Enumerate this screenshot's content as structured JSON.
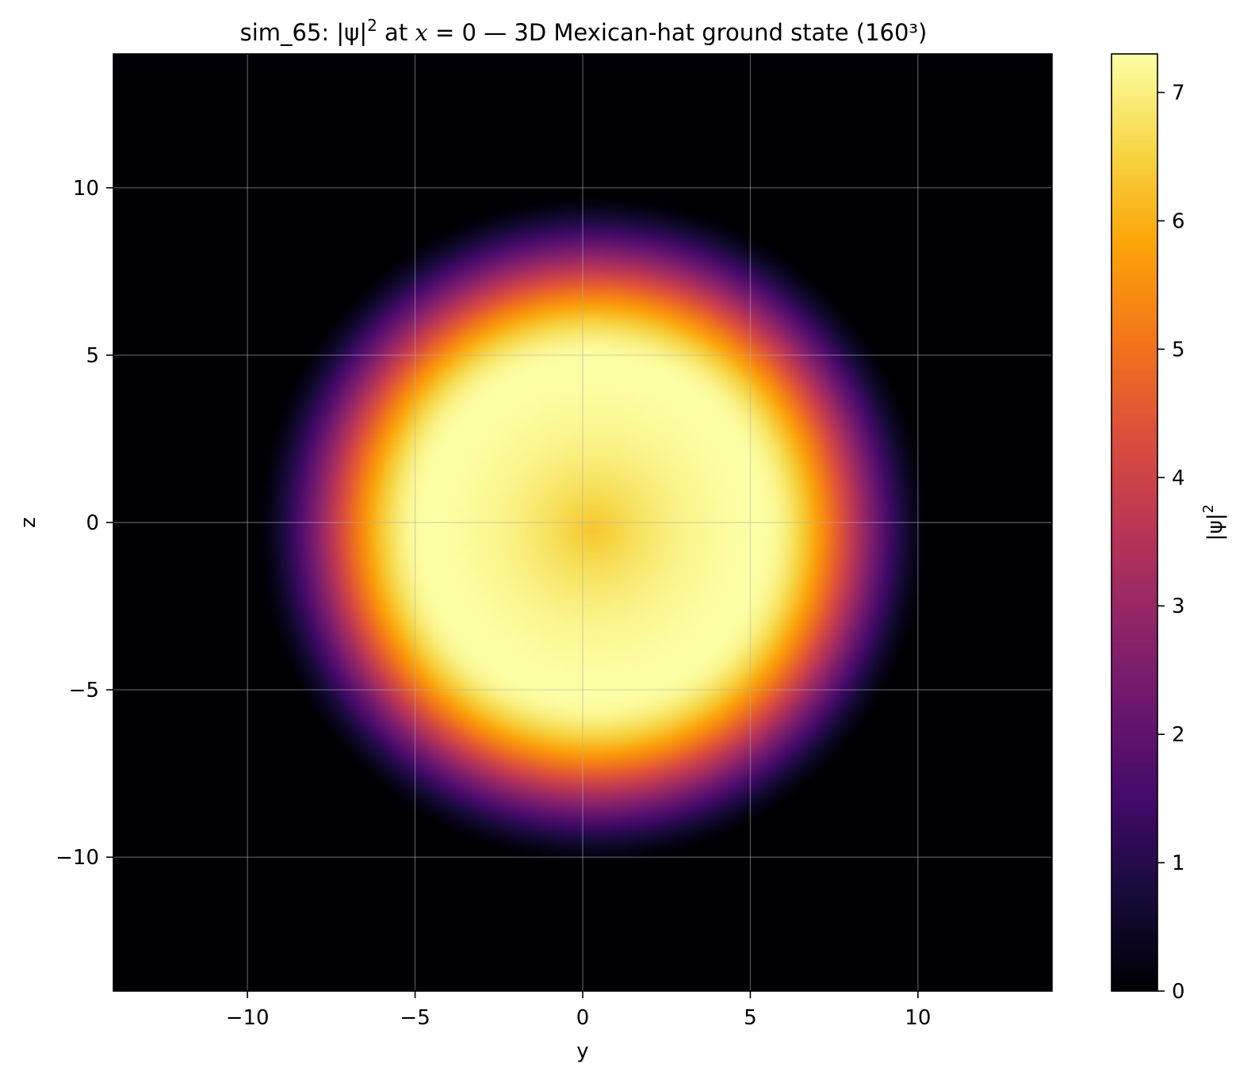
{
  "chart_data": {
    "type": "heatmap",
    "title_parts": {
      "prefix": "sim_65: |ψ|",
      "sup": "2",
      "mid": " at ",
      "var": "x",
      "eq": " = 0 — 3D Mexican-hat ground state (160³)"
    },
    "xlabel": "y",
    "ylabel": "z",
    "xlim": [
      -14,
      14
    ],
    "ylim": [
      -14,
      14
    ],
    "xticks": [
      -10,
      -5,
      0,
      5,
      10
    ],
    "yticks": [
      -10,
      -5,
      0,
      5,
      10
    ],
    "xtick_labels": [
      "−10",
      "−5",
      "0",
      "5",
      "10"
    ],
    "ytick_labels": [
      "−10",
      "−5",
      "0",
      "5",
      "10"
    ],
    "grid": true,
    "colormap": "inferno",
    "colorbar": {
      "label_base": "|ψ|",
      "label_sup": "2",
      "range": [
        0,
        7.3
      ],
      "ticks": [
        0,
        1,
        2,
        3,
        4,
        5,
        6,
        7
      ],
      "tick_labels": [
        "0",
        "1",
        "2",
        "3",
        "4",
        "5",
        "6",
        "7"
      ]
    },
    "field": {
      "description_values": "radial ring profile centred near (0.3, -0.2)",
      "center": [
        0.3,
        -0.2
      ],
      "center_value": 6.3,
      "peak_value": 7.3,
      "peak_radius": 5.0,
      "edge_radius": 10.0
    }
  }
}
